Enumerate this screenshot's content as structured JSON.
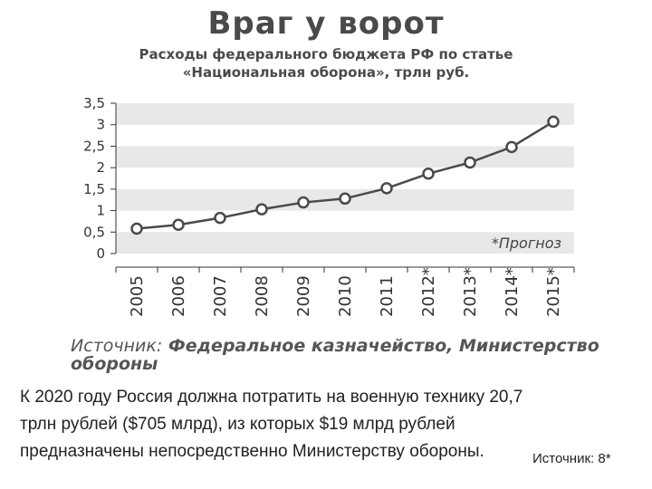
{
  "chart_data": {
    "type": "line",
    "title": "Враг у ворот",
    "subtitle": [
      "Расходы федерального бюджета РФ по статье",
      "«Национальная оборона», трлн руб."
    ],
    "categories": [
      "2005",
      "2006",
      "2007",
      "2008",
      "2009",
      "2010",
      "2011",
      "2012*",
      "2013*",
      "2014*",
      "2015*"
    ],
    "series": [
      {
        "values": [
          0.58,
          0.67,
          0.83,
          1.03,
          1.19,
          1.28,
          1.52,
          1.86,
          2.12,
          2.48,
          3.07
        ]
      }
    ],
    "y_ticks": [
      "0",
      "0,5",
      "1",
      "1,5",
      "2",
      "2,5",
      "3",
      "3,5"
    ],
    "ylim": [
      0,
      3.5
    ],
    "grid": "alternating horizontal bands",
    "annotation": "*Прогноз",
    "source_label": "Источник:",
    "source_text": "Федеральное казначейство, Министерство обороны",
    "colors": {
      "line": "#4a4a4a",
      "marker_fill": "#ffffff",
      "band": "#e6e8ea",
      "axis": "#333333"
    }
  },
  "footer": {
    "text": "К 2020 году Россия должна потратить на военную технику 20,7 трлн рублей ($705 млрд), из которых $19 млрд рублей предназначены непосредственно Министерству обороны.",
    "source": "Источник: 8*"
  }
}
